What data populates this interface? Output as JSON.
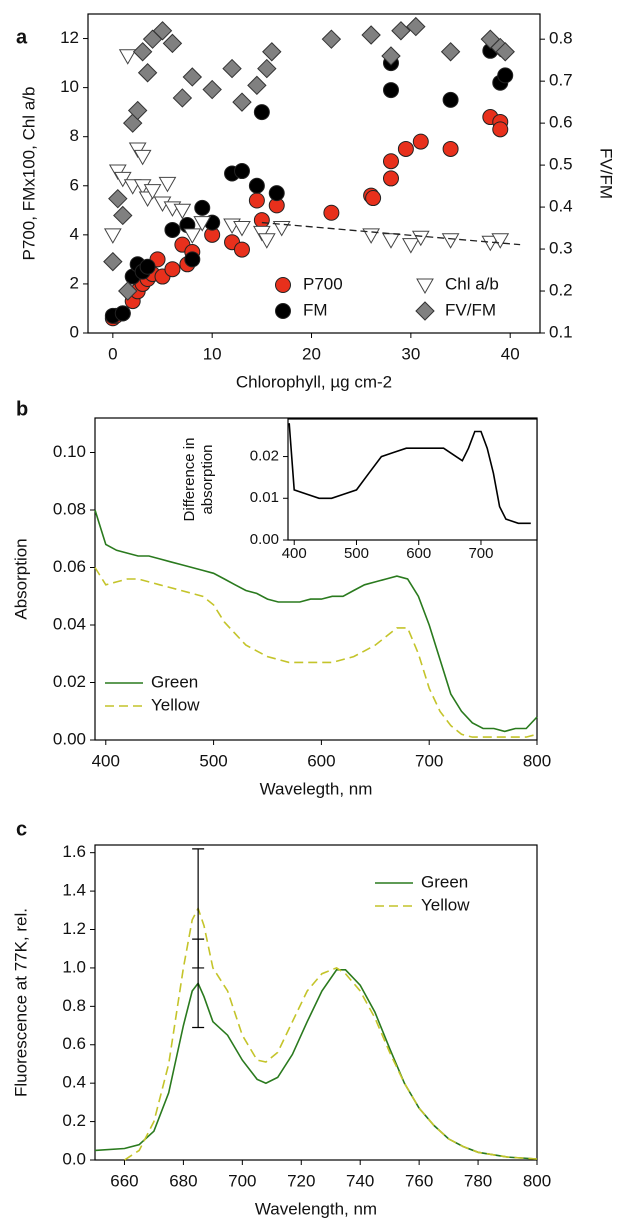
{
  "chart_data": [
    {
      "type": "scatter",
      "panel_label": "a",
      "xlabel": "Chlorophyll, µg cm-2",
      "ylabel": "P700, FMx100, Chl a/b",
      "y2label": "FV/FM",
      "xlim": [
        -2.5,
        43
      ],
      "ylim": [
        0,
        13
      ],
      "y2lim": [
        0.1,
        0.86
      ],
      "xticks": [
        0,
        10,
        20,
        30,
        40
      ],
      "yticks": [
        0,
        2,
        4,
        6,
        8,
        10,
        12
      ],
      "y2ticks": [
        0.1,
        0.2,
        0.3,
        0.4,
        0.5,
        0.6,
        0.7,
        0.8
      ],
      "series": [
        {
          "name": "P700",
          "marker": "circle",
          "color": "#e8301c",
          "x": [
            0,
            0.3,
            1,
            2,
            2.5,
            3,
            3.5,
            4,
            4.5,
            5,
            6,
            7,
            7.5,
            8,
            10,
            12,
            13,
            14.5,
            15,
            16.5,
            22,
            26,
            26.2,
            28,
            28,
            29.5,
            31,
            34,
            38,
            39,
            39
          ],
          "values": [
            0.6,
            0.7,
            0.8,
            1.3,
            1.7,
            2.0,
            2.2,
            2.4,
            3.0,
            2.3,
            2.6,
            3.6,
            2.8,
            3.3,
            4.0,
            3.7,
            3.4,
            5.4,
            4.6,
            5.2,
            4.9,
            5.6,
            5.5,
            6.3,
            7.0,
            7.5,
            7.8,
            7.5,
            8.8,
            8.6,
            8.3
          ]
        },
        {
          "name": "FM",
          "marker": "circle",
          "color": "#000000",
          "x": [
            0,
            1,
            2,
            2.5,
            3,
            3.5,
            6,
            7.5,
            8,
            9,
            10,
            12,
            13,
            14.5,
            15,
            16.5,
            28,
            28,
            34,
            38,
            39,
            39.5
          ],
          "values": [
            0.7,
            0.8,
            2.3,
            2.8,
            2.5,
            2.7,
            4.2,
            4.4,
            3.0,
            5.1,
            4.5,
            6.5,
            6.6,
            6.0,
            9.0,
            5.7,
            11.0,
            9.9,
            9.5,
            11.5,
            10.2,
            10.5
          ]
        },
        {
          "name": "Chl a/b",
          "marker": "triangle-down",
          "color": "#ffffff",
          "x": [
            0,
            0.5,
            1,
            1.5,
            2,
            2.5,
            3,
            3,
            3.5,
            4,
            5,
            5.5,
            6,
            7,
            8,
            9,
            12,
            13,
            15,
            15.5,
            17,
            26,
            28,
            30,
            31,
            34,
            38,
            39
          ],
          "values": [
            4.0,
            6.6,
            6.3,
            11.3,
            6.0,
            7.5,
            7.2,
            6.0,
            5.5,
            5.8,
            5.3,
            6.1,
            5.1,
            5.0,
            4.0,
            4.5,
            4.4,
            4.3,
            4.1,
            3.8,
            4.3,
            4.0,
            3.8,
            3.6,
            3.9,
            3.8,
            3.7,
            3.8
          ]
        },
        {
          "name": "FV/FM",
          "marker": "diamond",
          "color": "#808080",
          "axis": "y2",
          "x": [
            0,
            0.5,
            1,
            1.5,
            2,
            2.5,
            3,
            3.5,
            4,
            5,
            6,
            7,
            8,
            10,
            12,
            13,
            14.5,
            15.5,
            16,
            22,
            26,
            28,
            29,
            30.5,
            34,
            38,
            39,
            39.5
          ],
          "values": [
            0.27,
            0.42,
            0.38,
            0.2,
            0.6,
            0.63,
            0.77,
            0.72,
            0.8,
            0.82,
            0.79,
            0.66,
            0.71,
            0.68,
            0.73,
            0.65,
            0.69,
            0.73,
            0.77,
            0.8,
            0.81,
            0.76,
            0.82,
            0.83,
            0.77,
            0.8,
            0.78,
            0.77
          ]
        }
      ],
      "trend": {
        "x": [
          15,
          41
        ],
        "values": [
          4.5,
          3.6
        ]
      }
    },
    {
      "type": "line",
      "panel_label": "b",
      "xlabel": "Wavelegth, nm",
      "ylabel": "Absorption",
      "xlim": [
        390,
        800
      ],
      "ylim": [
        0,
        0.112
      ],
      "xticks": [
        400,
        500,
        600,
        700,
        800
      ],
      "yticks": [
        {
          "value": 0,
          "label": "0.00"
        },
        {
          "value": 0.02,
          "label": "0.02"
        },
        {
          "value": 0.04,
          "label": "0.04"
        },
        {
          "value": 0.06,
          "label": "0.06"
        },
        {
          "value": 0.08,
          "label": "0.08"
        },
        {
          "value": 0.1,
          "label": "0.10"
        }
      ],
      "x": [
        390,
        400,
        410,
        420,
        430,
        440,
        450,
        460,
        470,
        480,
        490,
        500,
        510,
        520,
        530,
        540,
        550,
        560,
        570,
        580,
        590,
        600,
        610,
        620,
        630,
        640,
        650,
        660,
        670,
        680,
        690,
        700,
        710,
        720,
        730,
        740,
        750,
        760,
        770,
        780,
        790,
        800
      ],
      "series": [
        {
          "name": "Green",
          "color": "#2a7a1e",
          "dash": false,
          "values": [
            0.08,
            0.068,
            0.066,
            0.065,
            0.064,
            0.064,
            0.063,
            0.062,
            0.061,
            0.06,
            0.059,
            0.058,
            0.056,
            0.054,
            0.052,
            0.051,
            0.049,
            0.048,
            0.048,
            0.048,
            0.049,
            0.049,
            0.05,
            0.05,
            0.052,
            0.054,
            0.055,
            0.056,
            0.057,
            0.056,
            0.05,
            0.04,
            0.028,
            0.016,
            0.01,
            0.006,
            0.004,
            0.004,
            0.003,
            0.004,
            0.004,
            0.008
          ]
        },
        {
          "name": "Yellow",
          "color": "#c4c42a",
          "dash": true,
          "values": [
            0.06,
            0.054,
            0.055,
            0.056,
            0.056,
            0.055,
            0.054,
            0.053,
            0.052,
            0.051,
            0.05,
            0.047,
            0.041,
            0.037,
            0.033,
            0.031,
            0.029,
            0.028,
            0.027,
            0.027,
            0.027,
            0.027,
            0.027,
            0.028,
            0.029,
            0.031,
            0.033,
            0.036,
            0.039,
            0.039,
            0.03,
            0.018,
            0.01,
            0.005,
            0.002,
            0.001,
            0.001,
            0.001,
            0.001,
            0.001,
            0.001,
            0.002
          ]
        }
      ],
      "inset": {
        "type": "line",
        "ylabel_lines": [
          "Difference in",
          "absorption"
        ],
        "xlim": [
          390,
          790
        ],
        "ylim": [
          0,
          0.029
        ],
        "xticks": [
          400,
          500,
          600,
          700
        ],
        "yticks": [
          {
            "value": 0,
            "label": "0.00"
          },
          {
            "value": 0.01,
            "label": "0.01"
          },
          {
            "value": 0.02,
            "label": "0.02"
          }
        ],
        "x": [
          392,
          400,
          420,
          440,
          460,
          480,
          500,
          520,
          540,
          560,
          580,
          600,
          620,
          640,
          660,
          670,
          680,
          690,
          700,
          710,
          720,
          730,
          740,
          760,
          780
        ],
        "series": [
          {
            "color": "#000000",
            "values": [
              0.028,
              0.012,
              0.011,
              0.01,
              0.01,
              0.011,
              0.012,
              0.016,
              0.02,
              0.021,
              0.022,
              0.022,
              0.022,
              0.022,
              0.02,
              0.019,
              0.022,
              0.026,
              0.026,
              0.022,
              0.016,
              0.008,
              0.005,
              0.004,
              0.004
            ]
          }
        ]
      }
    },
    {
      "type": "line",
      "panel_label": "c",
      "xlabel": "Wavelength, nm",
      "ylabel": "Fluorescence at 77K, rel.",
      "xlim": [
        650,
        800
      ],
      "ylim": [
        0,
        1.64
      ],
      "xticks": [
        660,
        680,
        700,
        720,
        740,
        760,
        780,
        800
      ],
      "yticks": [
        {
          "value": 0,
          "label": "0.0"
        },
        0.2,
        0.4,
        0.6,
        0.8,
        {
          "value": 1,
          "label": "1.0"
        },
        1.2,
        1.4,
        1.6
      ],
      "x": [
        650,
        660,
        665,
        670,
        675,
        680,
        683,
        685,
        687,
        690,
        695,
        700,
        705,
        708,
        712,
        717,
        722,
        727,
        732,
        735,
        740,
        745,
        750,
        755,
        760,
        765,
        770,
        775,
        780,
        790,
        800
      ],
      "series": [
        {
          "name": "Green",
          "color": "#2a7a1e",
          "dash": false,
          "values": [
            0.05,
            0.06,
            0.08,
            0.15,
            0.35,
            0.7,
            0.88,
            0.92,
            0.85,
            0.72,
            0.65,
            0.52,
            0.42,
            0.4,
            0.43,
            0.55,
            0.72,
            0.88,
            0.99,
            0.99,
            0.91,
            0.77,
            0.58,
            0.4,
            0.27,
            0.18,
            0.11,
            0.07,
            0.04,
            0.015,
            0.005
          ],
          "errors": {
            "x": 685,
            "value": 0.92,
            "error": 0.23
          }
        },
        {
          "name": "Yellow",
          "color": "#c4c42a",
          "dash": true,
          "values": [
            null,
            0.0,
            0.05,
            0.2,
            0.5,
            1.0,
            1.25,
            1.31,
            1.22,
            1.0,
            0.88,
            0.65,
            0.52,
            0.51,
            0.56,
            0.72,
            0.88,
            0.97,
            1.0,
            0.97,
            0.88,
            0.74,
            0.56,
            0.4,
            0.27,
            0.18,
            0.11,
            0.07,
            0.04,
            0.015,
            0.005
          ],
          "errors": {
            "x": 685,
            "value": 1.31,
            "error": 0.31
          }
        }
      ]
    }
  ]
}
